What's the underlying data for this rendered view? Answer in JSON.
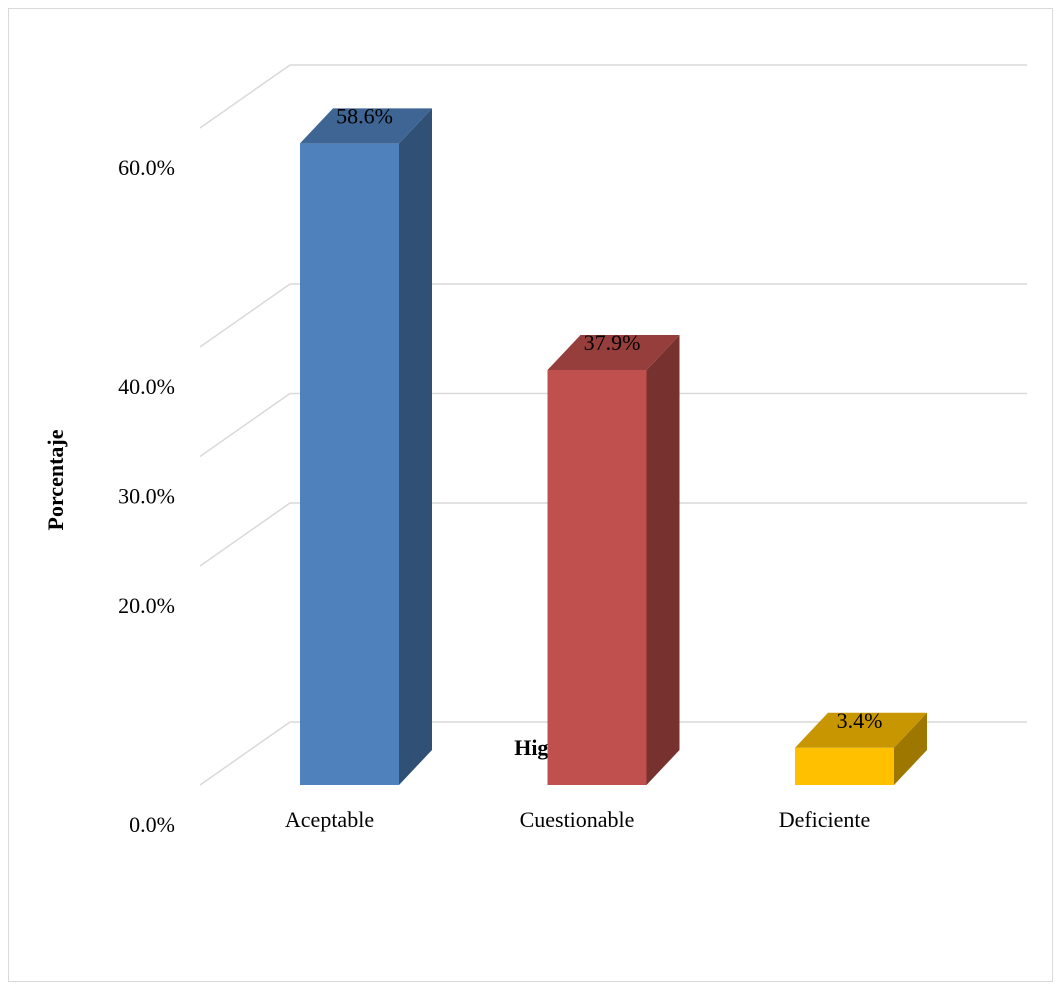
{
  "chart_data": {
    "type": "bar3d",
    "x_label": "Higiene Oral",
    "y_label": "Porcentaje",
    "categories": [
      "Aceptable",
      "Cuestionable",
      "Deficiente"
    ],
    "values": [
      58.6,
      37.9,
      3.4
    ],
    "value_labels": [
      "58.6%",
      "37.9%",
      "3.4%"
    ],
    "colors": [
      "#4f81bd",
      "#c0504d",
      "#ffc000"
    ],
    "ylim": [
      0,
      60
    ],
    "yticks": [
      {
        "value": 0,
        "label": "0.0%"
      },
      {
        "value": 20,
        "label": "20.0%"
      },
      {
        "value": 30,
        "label": "30.0%"
      },
      {
        "value": 40,
        "label": "40.0%"
      },
      {
        "value": 60,
        "label": "60.0%"
      }
    ],
    "grid": true
  }
}
